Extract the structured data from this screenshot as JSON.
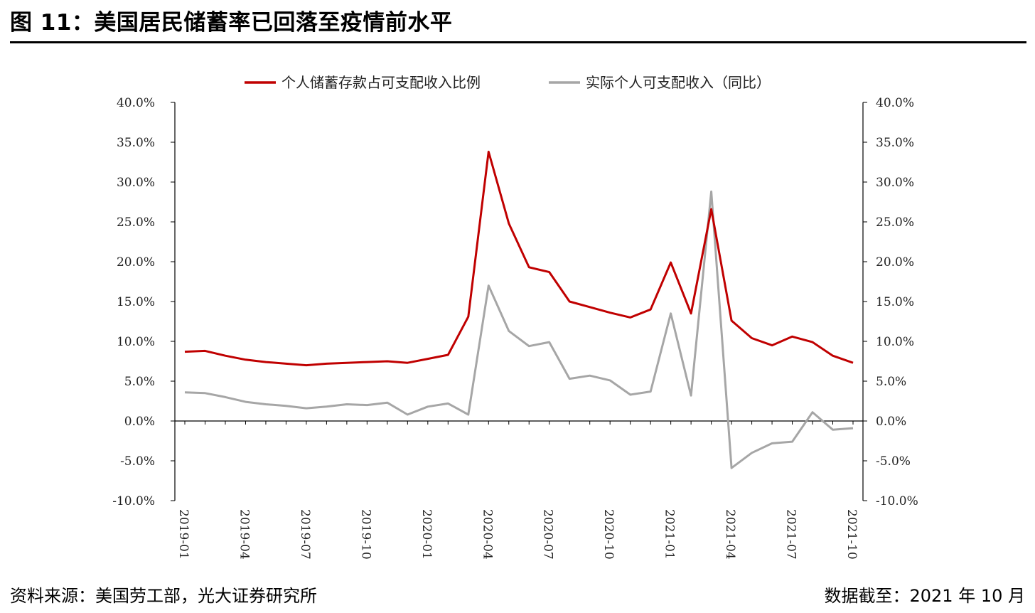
{
  "header": {
    "title": "图 11：美国居民储蓄率已回落至疫情前水平"
  },
  "footer": {
    "source": "资料来源：美国劳工部，光大证券研究所",
    "date": "数据截至：2021 年 10 月"
  },
  "colors": {
    "savings": "#c00000",
    "income": "#a6a6a6",
    "axis": "#000000"
  },
  "chart_data": {
    "type": "line",
    "title": "",
    "left_axis": {
      "ylim": [
        -10,
        40
      ],
      "ticks": [
        "-10.0%",
        "-5.0%",
        "0.0%",
        "5.0%",
        "10.0%",
        "15.0%",
        "20.0%",
        "25.0%",
        "30.0%",
        "35.0%",
        "40.0%"
      ]
    },
    "right_axis": {
      "ylim": [
        -10,
        40
      ],
      "ticks": [
        "-10.0%",
        "-5.0%",
        "0.0%",
        "5.0%",
        "10.0%",
        "15.0%",
        "20.0%",
        "25.0%",
        "30.0%",
        "35.0%",
        "40.0%"
      ]
    },
    "x_labels": [
      "2019-01",
      "2019-04",
      "2019-07",
      "2019-10",
      "2020-01",
      "2020-04",
      "2020-07",
      "2020-10",
      "2021-01",
      "2021-04",
      "2021-07",
      "2021-10"
    ],
    "x": [
      "2019-01",
      "2019-02",
      "2019-03",
      "2019-04",
      "2019-05",
      "2019-06",
      "2019-07",
      "2019-08",
      "2019-09",
      "2019-10",
      "2019-11",
      "2019-12",
      "2020-01",
      "2020-02",
      "2020-03",
      "2020-04",
      "2020-05",
      "2020-06",
      "2020-07",
      "2020-08",
      "2020-09",
      "2020-10",
      "2020-11",
      "2020-12",
      "2021-01",
      "2021-02",
      "2021-03",
      "2021-04",
      "2021-05",
      "2021-06",
      "2021-07",
      "2021-08",
      "2021-09",
      "2021-10"
    ],
    "series": [
      {
        "name": "个人储蓄存款占可支配收入比例",
        "color": "#c00000",
        "values": [
          8.7,
          8.8,
          8.2,
          7.7,
          7.4,
          7.2,
          7.0,
          7.2,
          7.3,
          7.4,
          7.5,
          7.3,
          7.8,
          8.3,
          13.1,
          33.8,
          24.8,
          19.3,
          18.7,
          15.0,
          14.3,
          13.6,
          13.0,
          14.0,
          19.9,
          13.5,
          26.6,
          12.6,
          10.4,
          9.5,
          10.6,
          9.9,
          8.2,
          7.3
        ]
      },
      {
        "name": "实际个人可支配收入（同比）",
        "color": "#a6a6a6",
        "values": [
          3.6,
          3.5,
          3.0,
          2.4,
          2.1,
          1.9,
          1.6,
          1.8,
          2.1,
          2.0,
          2.3,
          0.8,
          1.8,
          2.2,
          0.8,
          17.0,
          11.3,
          9.4,
          9.9,
          5.3,
          5.7,
          5.1,
          3.3,
          3.7,
          13.5,
          3.2,
          28.8,
          -5.9,
          -4.0,
          -2.8,
          -2.6,
          1.1,
          -1.1,
          -0.9
        ]
      }
    ],
    "legend_position": "top-center",
    "grid": false
  }
}
